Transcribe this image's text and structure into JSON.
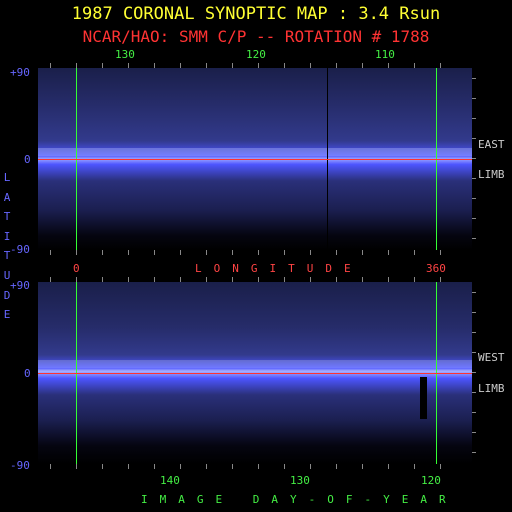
{
  "header": {
    "title": "1987 CORONAL SYNOPTIC MAP : 3.4 Rsun",
    "subtitle": "NCAR/HAO: SMM C/P -- ROTATION # 1788"
  },
  "top_panel": {
    "top_axis_labels": [
      "130",
      "120",
      "110"
    ],
    "lat_labels": [
      "+90",
      "0",
      "-90"
    ],
    "side_label_1": "EAST",
    "side_label_2": "LIMB"
  },
  "middle_axis": {
    "left_value": "0",
    "title": "LONGITUDE",
    "right_value": "360"
  },
  "left_axis": {
    "title": "LATITUDE"
  },
  "bottom_panel": {
    "lat_labels": [
      "+90",
      "0",
      "-90"
    ],
    "side_label_1": "WEST",
    "side_label_2": "LIMB",
    "bottom_axis_labels": [
      "140",
      "130",
      "120"
    ],
    "bottom_axis_title": "IMAGE DAY-OF-YEAR"
  },
  "colors": {
    "title": "#ffff33",
    "subtitle": "#ff3333",
    "axis_green": "#44ee44",
    "axis_blue": "#6666ff",
    "axis_red": "#ff4444",
    "side_label": "#cccccc",
    "corona_band": "#4d55ff",
    "equator_line": "#ff3333",
    "marker_line": "#33ff33"
  }
}
